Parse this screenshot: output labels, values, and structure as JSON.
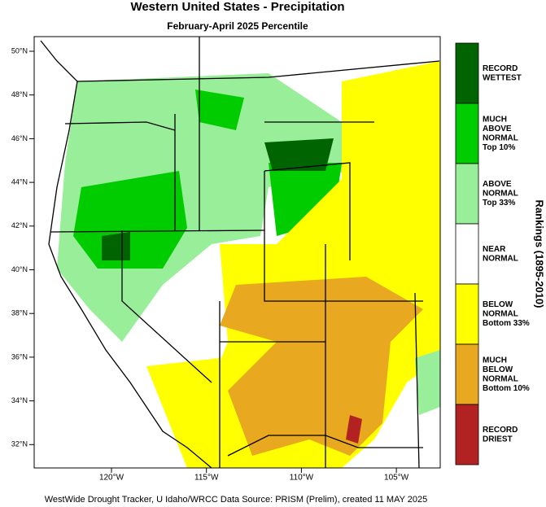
{
  "header": {
    "title": "Western United States - Precipitation",
    "subtitle": "February-April 2025 Percentile"
  },
  "map": {
    "lat_labels": [
      "50°N",
      "48°N",
      "46°N",
      "44°N",
      "42°N",
      "40°N",
      "38°N",
      "36°N",
      "34°N",
      "32°N"
    ],
    "lon_labels": [
      "120°W",
      "115°W",
      "110°W",
      "105°W"
    ]
  },
  "legend": {
    "title": "Rankings (1895-2010)",
    "entries": [
      {
        "lines": [
          "RECORD",
          "WETTEST"
        ],
        "color": "#006400"
      },
      {
        "lines": [
          "MUCH",
          "ABOVE",
          "NORMAL",
          "Top 10%"
        ],
        "color": "#00cc00"
      },
      {
        "lines": [
          "ABOVE",
          "NORMAL",
          "Top 33%"
        ],
        "color": "#99ee99"
      },
      {
        "lines": [
          "NEAR",
          "NORMAL"
        ],
        "color": "#ffffff"
      },
      {
        "lines": [
          "BELOW",
          "NORMAL",
          "Bottom 33%"
        ],
        "color": "#ffff00"
      },
      {
        "lines": [
          "MUCH",
          "BELOW",
          "NORMAL",
          "Bottom 10%"
        ],
        "color": "#e8a820"
      },
      {
        "lines": [
          "RECORD",
          "DRIEST"
        ],
        "color": "#b22222"
      }
    ]
  },
  "footer": "WestWide Drought Tracker, U Idaho/WRCC Data Source: PRISM (Prelim), created 11 MAY 2025"
}
